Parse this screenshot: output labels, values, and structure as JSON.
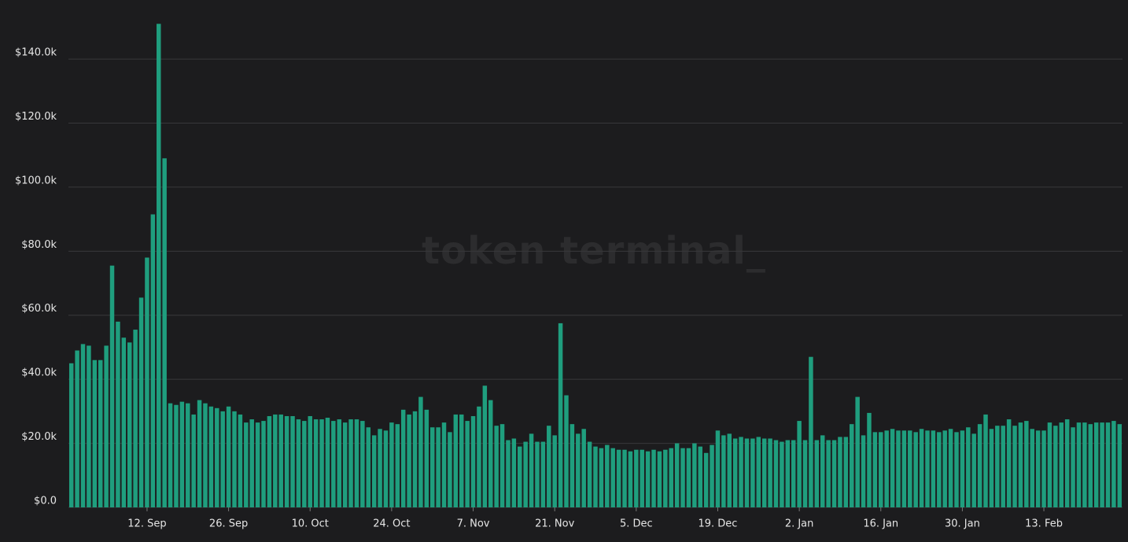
{
  "chart_data": {
    "type": "bar",
    "watermark": "token terminal_",
    "color": "#1f9e7e",
    "grid": true,
    "ylim": [
      0,
      155000
    ],
    "yticks": [
      {
        "value": 0,
        "label": "$0.0"
      },
      {
        "value": 20000,
        "label": "$20.0k"
      },
      {
        "value": 40000,
        "label": "$40.0k"
      },
      {
        "value": 60000,
        "label": "$60.0k"
      },
      {
        "value": 80000,
        "label": "$80.0k"
      },
      {
        "value": 100000,
        "label": "$100.0k"
      },
      {
        "value": 120000,
        "label": "$120.0k"
      },
      {
        "value": 140000,
        "label": "$140.0k"
      }
    ],
    "categories": [
      null,
      null,
      null,
      null,
      null,
      null,
      null,
      null,
      null,
      null,
      null,
      null,
      null,
      "12. Sep",
      null,
      null,
      null,
      null,
      null,
      null,
      null,
      null,
      null,
      null,
      null,
      null,
      null,
      "26. Sep",
      null,
      null,
      null,
      null,
      null,
      null,
      null,
      null,
      null,
      null,
      null,
      null,
      null,
      "10. Oct",
      null,
      null,
      null,
      null,
      null,
      null,
      null,
      null,
      null,
      null,
      null,
      null,
      null,
      "24. Oct",
      null,
      null,
      null,
      null,
      null,
      null,
      null,
      null,
      null,
      null,
      null,
      null,
      null,
      "7. Nov",
      null,
      null,
      null,
      null,
      null,
      null,
      null,
      null,
      null,
      null,
      null,
      null,
      null,
      "21. Nov",
      null,
      null,
      null,
      null,
      null,
      null,
      null,
      null,
      null,
      null,
      null,
      null,
      null,
      "5. Dec",
      null,
      null,
      null,
      null,
      null,
      null,
      null,
      null,
      null,
      null,
      null,
      null,
      null,
      "19. Dec",
      null,
      null,
      null,
      null,
      null,
      null,
      null,
      null,
      null,
      null,
      null,
      null,
      null,
      "2. Jan",
      null,
      null,
      null,
      null,
      null,
      null,
      null,
      null,
      null,
      null,
      null,
      null,
      null,
      "16. Jan",
      null,
      null,
      null,
      null,
      null,
      null,
      null,
      null,
      null,
      null,
      null,
      null,
      null,
      "30. Jan",
      null,
      null,
      null,
      null,
      null,
      null,
      null,
      null,
      null,
      null,
      null,
      null,
      null,
      "13. Feb",
      null,
      null,
      null,
      null,
      null,
      null,
      null,
      null,
      null,
      null,
      null,
      null,
      null
    ],
    "values": [
      45000,
      49000,
      51000,
      50500,
      46000,
      46000,
      50500,
      75500,
      58000,
      53000,
      51500,
      55500,
      65500,
      78000,
      91500,
      151000,
      109000,
      32500,
      32000,
      33000,
      32500,
      29000,
      33500,
      32500,
      31500,
      31000,
      30000,
      31500,
      30000,
      29000,
      26500,
      27500,
      26500,
      27000,
      28500,
      29000,
      29000,
      28500,
      28500,
      27500,
      27000,
      28500,
      27500,
      27500,
      28000,
      27000,
      27500,
      26500,
      27500,
      27500,
      27000,
      25000,
      22500,
      24500,
      24000,
      26500,
      26000,
      30500,
      29000,
      30000,
      34500,
      30500,
      25000,
      25000,
      26500,
      23500,
      29000,
      29000,
      27000,
      28500,
      31500,
      38000,
      33500,
      25500,
      26000,
      21000,
      21500,
      19000,
      20500,
      23000,
      20500,
      20500,
      25500,
      22500,
      57500,
      35000,
      26000,
      23000,
      24500,
      20500,
      19000,
      18500,
      19500,
      18500,
      18000,
      18000,
      17500,
      18000,
      18000,
      17500,
      18000,
      17500,
      18000,
      18500,
      20000,
      18500,
      18500,
      20000,
      19000,
      17000,
      19500,
      24000,
      22500,
      23000,
      21500,
      22000,
      21500,
      21500,
      22000,
      21500,
      21500,
      21000,
      20500,
      21000,
      21000,
      27000,
      21000,
      47000,
      21000,
      22500,
      21000,
      21000,
      22000,
      22000,
      26000,
      34500,
      22500,
      29500,
      23500,
      23500,
      24000,
      24500,
      24000,
      24000,
      24000,
      23500,
      24500,
      24000,
      24000,
      23500,
      24000,
      24500,
      23500,
      24000,
      25000,
      23000,
      26000,
      29000,
      24500,
      25500,
      25500,
      27500,
      25500,
      26500,
      27000,
      24500,
      24000,
      24000,
      26500,
      25500,
      26500,
      27500,
      25000,
      26500,
      26500,
      26000,
      26500,
      26500,
      26500,
      27000,
      26000
    ]
  }
}
